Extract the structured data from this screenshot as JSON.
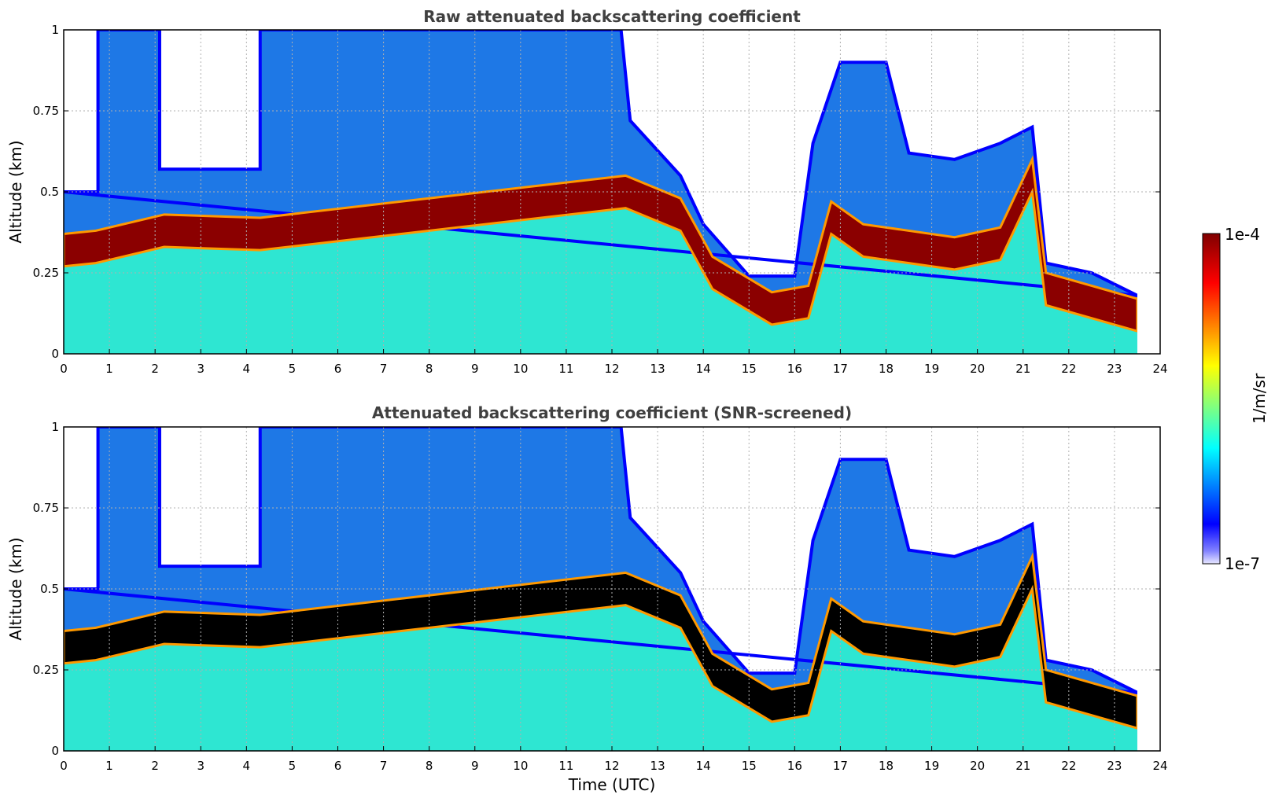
{
  "figure": {
    "xlabel": "Time (UTC)"
  },
  "chart_data": [
    {
      "type": "heatmap",
      "title": "Raw attenuated backscattering coefficient",
      "xlabel": "",
      "ylabel": "Altitude (km)",
      "xlim": [
        0,
        24
      ],
      "ylim": [
        0,
        1
      ],
      "x_ticks": [
        "0",
        "1",
        "2",
        "3",
        "4",
        "5",
        "6",
        "7",
        "8",
        "9",
        "10",
        "11",
        "12",
        "13",
        "14",
        "15",
        "16",
        "17",
        "18",
        "19",
        "20",
        "21",
        "22",
        "23",
        "24"
      ],
      "y_ticks": [
        "0",
        "0.25",
        "0.5",
        "0.75",
        "1"
      ],
      "grid": true,
      "colormap": "jet",
      "color_scale": "log",
      "data_end_time": 23.5,
      "layer_top_km": [
        [
          0,
          0.5
        ],
        [
          0.75,
          0.5
        ],
        [
          0.75,
          1
        ],
        [
          2.1,
          1
        ],
        [
          2.1,
          0.57
        ],
        [
          4.3,
          0.57
        ],
        [
          4.3,
          1
        ],
        [
          12.2,
          1
        ],
        [
          12.4,
          0.72
        ],
        [
          13.5,
          0.55
        ],
        [
          14,
          0.4
        ],
        [
          15,
          0.24
        ],
        [
          16,
          0.24
        ],
        [
          16.4,
          0.65
        ],
        [
          17,
          0.9
        ],
        [
          18,
          0.9
        ],
        [
          18.5,
          0.62
        ],
        [
          19.5,
          0.6
        ],
        [
          20.5,
          0.65
        ],
        [
          21.2,
          0.7
        ],
        [
          21.5,
          0.28
        ],
        [
          22.5,
          0.25
        ],
        [
          23.5,
          0.18
        ]
      ],
      "dense_layer_km": [
        [
          0,
          0.32
        ],
        [
          0.7,
          0.33
        ],
        [
          2.2,
          0.38
        ],
        [
          4.3,
          0.37
        ],
        [
          12.3,
          0.5
        ],
        [
          13.5,
          0.43
        ],
        [
          14.2,
          0.25
        ],
        [
          15.5,
          0.14
        ],
        [
          16.3,
          0.16
        ],
        [
          16.8,
          0.42
        ],
        [
          17.5,
          0.35
        ],
        [
          18.5,
          0.33
        ],
        [
          19.5,
          0.31
        ],
        [
          20.5,
          0.34
        ],
        [
          21.2,
          0.55
        ],
        [
          21.5,
          0.2
        ],
        [
          23.5,
          0.12
        ]
      ],
      "dense_layer_thickness_km": 0.1
    },
    {
      "type": "heatmap",
      "title": "Attenuated backscattering coefficient (SNR-screened)",
      "xlabel": "Time (UTC)",
      "ylabel": "Altitude (km)",
      "xlim": [
        0,
        24
      ],
      "ylim": [
        0,
        1
      ],
      "x_ticks": [
        "0",
        "1",
        "2",
        "3",
        "4",
        "5",
        "6",
        "7",
        "8",
        "9",
        "10",
        "11",
        "12",
        "13",
        "14",
        "15",
        "16",
        "17",
        "18",
        "19",
        "20",
        "21",
        "22",
        "23",
        "24"
      ],
      "y_ticks": [
        "0",
        "0.25",
        "0.5",
        "0.75",
        "1"
      ],
      "grid": true,
      "colormap": "jet",
      "color_scale": "log",
      "screened_color": "#000000",
      "data_end_time": 23.5,
      "layer_top_km": [
        [
          0,
          0.5
        ],
        [
          0.75,
          0.5
        ],
        [
          0.75,
          1
        ],
        [
          2.1,
          1
        ],
        [
          2.1,
          0.57
        ],
        [
          4.3,
          0.57
        ],
        [
          4.3,
          1
        ],
        [
          12.2,
          1
        ],
        [
          12.4,
          0.72
        ],
        [
          13.5,
          0.55
        ],
        [
          14,
          0.4
        ],
        [
          15,
          0.24
        ],
        [
          16,
          0.24
        ],
        [
          16.4,
          0.65
        ],
        [
          17,
          0.9
        ],
        [
          18,
          0.9
        ],
        [
          18.5,
          0.62
        ],
        [
          19.5,
          0.6
        ],
        [
          20.5,
          0.65
        ],
        [
          21.2,
          0.7
        ],
        [
          21.5,
          0.28
        ],
        [
          22.5,
          0.25
        ],
        [
          23.5,
          0.18
        ]
      ],
      "dense_layer_km": [
        [
          0,
          0.32
        ],
        [
          0.7,
          0.33
        ],
        [
          2.2,
          0.38
        ],
        [
          4.3,
          0.37
        ],
        [
          12.3,
          0.5
        ],
        [
          13.5,
          0.43
        ],
        [
          14.2,
          0.25
        ],
        [
          15.5,
          0.14
        ],
        [
          16.3,
          0.16
        ],
        [
          16.8,
          0.42
        ],
        [
          17.5,
          0.35
        ],
        [
          18.5,
          0.33
        ],
        [
          19.5,
          0.31
        ],
        [
          20.5,
          0.34
        ],
        [
          21.2,
          0.55
        ],
        [
          21.5,
          0.2
        ],
        [
          23.5,
          0.12
        ]
      ],
      "dense_layer_thickness_km": 0.1
    }
  ],
  "colorbar": {
    "label": "1/m/sr",
    "max_label": "1e-4",
    "min_label": "1e-7",
    "min": 1e-07,
    "max": 0.0001,
    "scale": "log",
    "colors": [
      "#e8e8ff",
      "#0000ff",
      "#00ffff",
      "#ffff00",
      "#ff0000",
      "#800000"
    ]
  }
}
